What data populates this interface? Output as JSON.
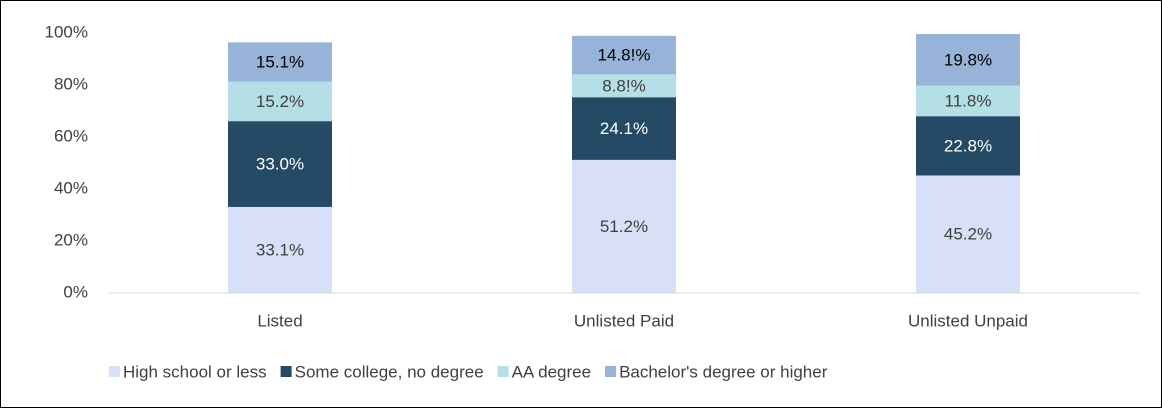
{
  "chart_data": {
    "type": "stacked_bar",
    "categories": [
      "Listed",
      "Unlisted Paid",
      "Unlisted Unpaid"
    ],
    "series": [
      {
        "name": "High school or less",
        "color": "#d7e0f6",
        "values": [
          33.1,
          51.2,
          45.2
        ],
        "value_labels": [
          "33.1%",
          "51.2%",
          "45.2%"
        ]
      },
      {
        "name": "Some college, no degree",
        "color": "#254a65",
        "values": [
          33.0,
          24.1,
          22.8
        ],
        "value_labels": [
          "33.0%",
          "24.1%",
          "22.8%"
        ]
      },
      {
        "name": "AA degree",
        "color": "#b5dfe6",
        "values": [
          15.2,
          8.8,
          11.8
        ],
        "value_labels": [
          "15.2%",
          "8.8!%",
          "11.8%"
        ]
      },
      {
        "name": "Bachelor's degree or higher",
        "color": "#97b3d8",
        "values": [
          15.1,
          14.8,
          19.8
        ],
        "value_labels": [
          "15.1%",
          "14.8!%",
          "19.8%"
        ]
      }
    ],
    "ylim": [
      0,
      100
    ],
    "yticks": [
      {
        "value": 0,
        "label": "0%"
      },
      {
        "value": 20,
        "label": "20%"
      },
      {
        "value": 40,
        "label": "40%"
      },
      {
        "value": 60,
        "label": "60%"
      },
      {
        "value": 80,
        "label": "80%"
      },
      {
        "value": 100,
        "label": "100%"
      }
    ],
    "grid": false,
    "legend": "bottom"
  }
}
